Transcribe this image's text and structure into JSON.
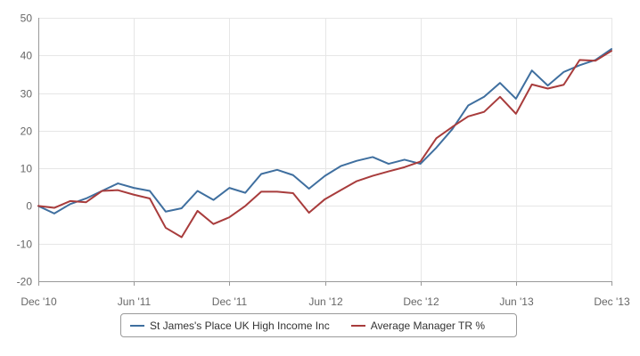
{
  "chart_data": {
    "type": "line",
    "title": "",
    "xlabel": "",
    "ylabel": "",
    "ylim": [
      -20,
      50
    ],
    "yticks": [
      -20,
      -10,
      0,
      10,
      20,
      30,
      40,
      50
    ],
    "xlim": [
      "2010-12",
      "2013-12"
    ],
    "xticks": [
      {
        "x": "2010-12",
        "label": "Dec '10"
      },
      {
        "x": "2011-06",
        "label": "Jun '11"
      },
      {
        "x": "2011-12",
        "label": "Dec '11"
      },
      {
        "x": "2012-06",
        "label": "Jun '12"
      },
      {
        "x": "2012-12",
        "label": "Dec '12"
      },
      {
        "x": "2013-06",
        "label": "Jun '13"
      },
      {
        "x": "2013-12",
        "label": "Dec '13"
      }
    ],
    "grid": true,
    "legend_position": "bottom",
    "x": [
      "2010-12",
      "2011-01",
      "2011-02",
      "2011-03",
      "2011-04",
      "2011-05",
      "2011-06",
      "2011-07",
      "2011-08",
      "2011-09",
      "2011-10",
      "2011-11",
      "2011-12",
      "2012-01",
      "2012-02",
      "2012-03",
      "2012-04",
      "2012-05",
      "2012-06",
      "2012-07",
      "2012-08",
      "2012-09",
      "2012-10",
      "2012-11",
      "2012-12",
      "2013-01",
      "2013-02",
      "2013-03",
      "2013-04",
      "2013-05",
      "2013-06",
      "2013-07",
      "2013-08",
      "2013-09",
      "2013-10",
      "2013-11",
      "2013-12"
    ],
    "series": [
      {
        "name": "St James's Place UK High Income Inc",
        "color": "#3f6f9f",
        "values": [
          0,
          -2,
          0.5,
          2,
          4,
          6,
          4.8,
          4,
          -1.5,
          -0.6,
          4,
          1.6,
          4.8,
          3.5,
          8.5,
          9.6,
          8.2,
          4.6,
          8,
          10.6,
          12,
          13,
          11.2,
          12.3,
          11.2,
          15.5,
          20.4,
          26.7,
          29,
          32.7,
          28.5,
          36,
          32,
          35.6,
          37.4,
          38.8,
          41.7
        ]
      },
      {
        "name": "Average Manager TR %",
        "color": "#a83c3c",
        "values": [
          0,
          -0.5,
          1.3,
          1,
          4,
          4.2,
          3,
          2,
          -5.8,
          -8.3,
          -1.3,
          -4.8,
          -3,
          0,
          3.8,
          3.8,
          3.4,
          -1.8,
          1.8,
          4.2,
          6.6,
          8,
          9.2,
          10.3,
          11.8,
          18,
          21,
          23.8,
          25,
          29,
          24.5,
          32.3,
          31.2,
          32.2,
          38.8,
          38.6,
          41.2
        ]
      }
    ]
  }
}
